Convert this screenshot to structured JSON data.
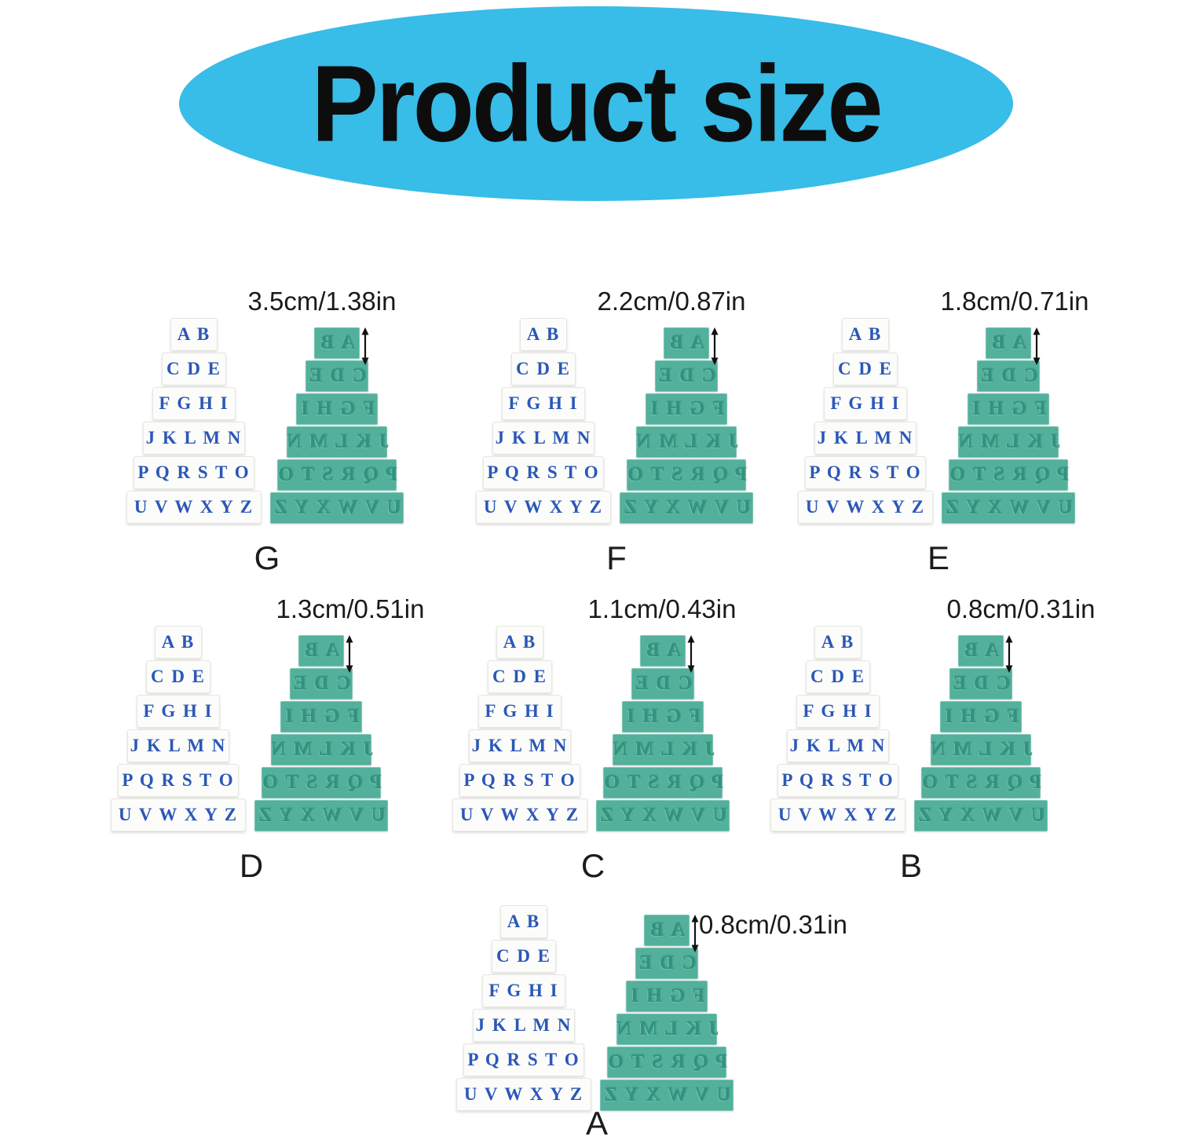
{
  "header": {
    "title": "Product size"
  },
  "alphabet_rows": [
    "A B",
    "C D E",
    "F G H I",
    "J K L M N",
    "P Q R S T O",
    "U V W X Y Z"
  ],
  "units": [
    {
      "name": "G",
      "size": "3.5cm/1.38in"
    },
    {
      "name": "F",
      "size": "2.2cm/0.87in"
    },
    {
      "name": "E",
      "size": "1.8cm/0.71in"
    },
    {
      "name": "D",
      "size": "1.3cm/0.51in"
    },
    {
      "name": "C",
      "size": "1.1cm/0.43in"
    },
    {
      "name": "B",
      "size": "0.8cm/0.31in"
    },
    {
      "name": "A",
      "size": "0.8cm/0.31in"
    }
  ],
  "colors": {
    "ellipse_blue": "#38BCE8",
    "title_black": "#0D0D0D",
    "letter_blue": "#2B57B8",
    "stamp_green": "#52B09B",
    "stamp_green_letter": "#2F947F",
    "block_white": "#FCFCFA"
  }
}
